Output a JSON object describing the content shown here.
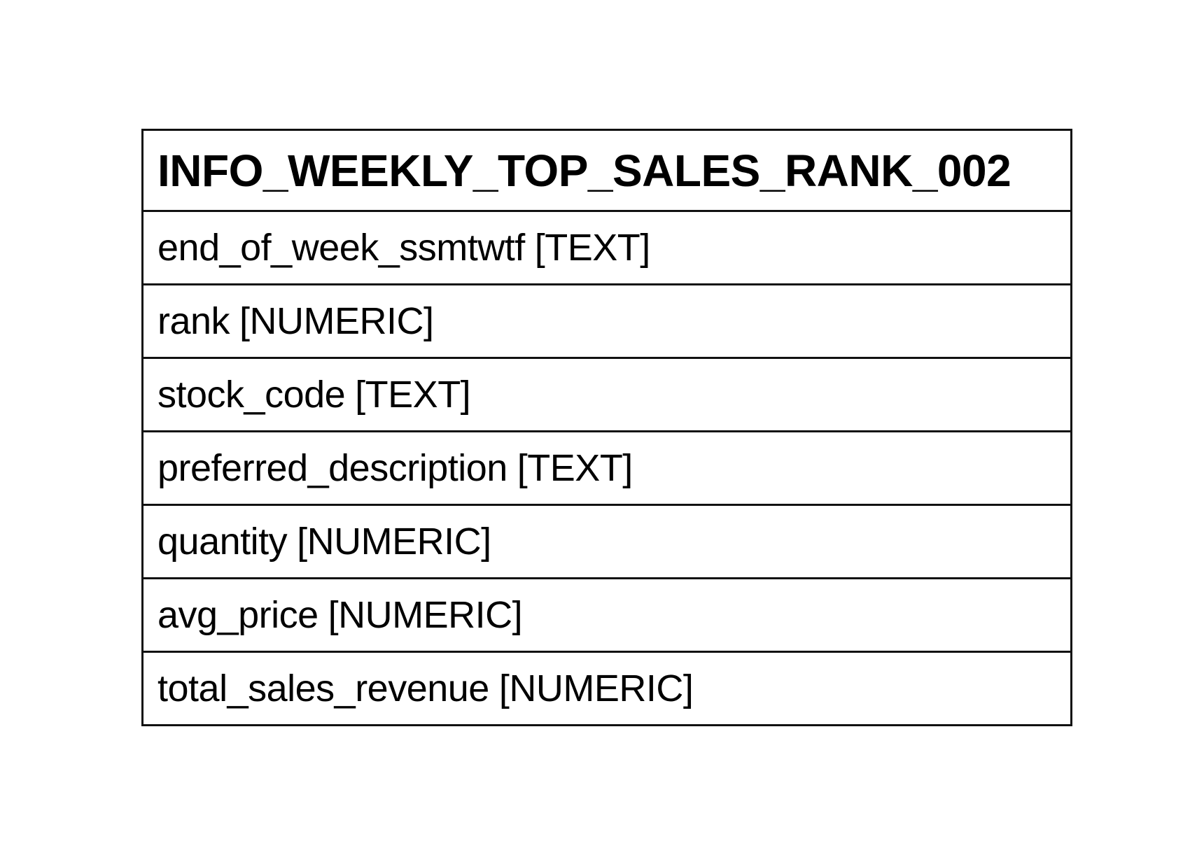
{
  "table": {
    "name": "INFO_WEEKLY_TOP_SALES_RANK_002",
    "fields": [
      {
        "name": "end_of_week_ssmtwtf",
        "type": "[TEXT]"
      },
      {
        "name": "rank",
        "type": "[NUMERIC]"
      },
      {
        "name": "stock_code",
        "type": "[TEXT]"
      },
      {
        "name": "preferred_description",
        "type": "[TEXT]"
      },
      {
        "name": "quantity",
        "type": "[NUMERIC]"
      },
      {
        "name": "avg_price",
        "type": "[NUMERIC]"
      },
      {
        "name": "total_sales_revenue",
        "type": "[NUMERIC]"
      }
    ]
  }
}
